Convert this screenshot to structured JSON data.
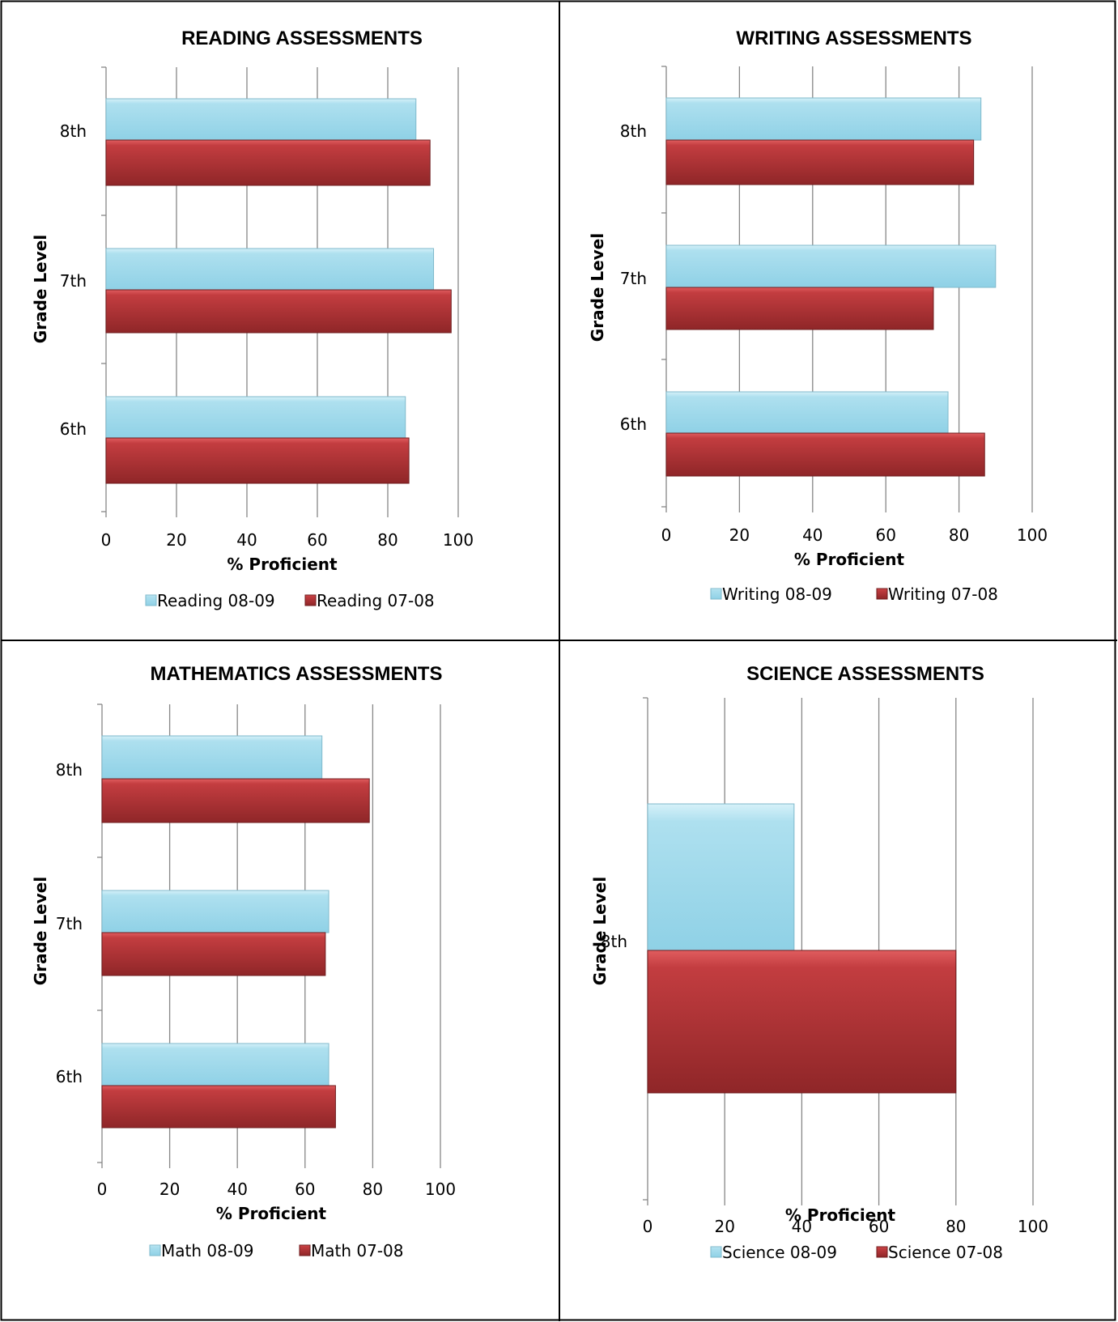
{
  "colors": {
    "series_0809": "#a2dcec",
    "series_0708": "#b33537",
    "grid": "#878787",
    "border": "#000000"
  },
  "chart_data": [
    {
      "type": "bar",
      "orientation": "horizontal",
      "title": "READING ASSESSMENTS",
      "xlabel": "% Proficient",
      "ylabel": "Grade Level",
      "categories": [
        "6th",
        "7th",
        "8th"
      ],
      "xlim": [
        0,
        100
      ],
      "xticks": [
        0,
        20,
        40,
        60,
        80,
        100
      ],
      "grid": true,
      "legend": "bottom",
      "series": [
        {
          "name": "Reading 08-09",
          "values": [
            85,
            93,
            88
          ]
        },
        {
          "name": "Reading 07-08",
          "values": [
            86,
            98,
            92
          ]
        }
      ]
    },
    {
      "type": "bar",
      "orientation": "horizontal",
      "title": "WRITING ASSESSMENTS",
      "xlabel": "% Proficient",
      "ylabel": "Grade Level",
      "categories": [
        "6th",
        "7th",
        "8th"
      ],
      "xlim": [
        0,
        100
      ],
      "xticks": [
        0,
        20,
        40,
        60,
        80,
        100
      ],
      "grid": true,
      "legend": "bottom",
      "series": [
        {
          "name": "Writing 08-09",
          "values": [
            77,
            90,
            86
          ]
        },
        {
          "name": "Writing 07-08",
          "values": [
            87,
            73,
            84
          ]
        }
      ]
    },
    {
      "type": "bar",
      "orientation": "horizontal",
      "title": "MATHEMATICS ASSESSMENTS",
      "xlabel": "% Proficient",
      "ylabel": "Grade Level",
      "categories": [
        "6th",
        "7th",
        "8th"
      ],
      "xlim": [
        0,
        100
      ],
      "xticks": [
        0,
        20,
        40,
        60,
        80,
        100
      ],
      "grid": true,
      "legend": "bottom",
      "series": [
        {
          "name": "Math 08-09",
          "values": [
            67,
            67,
            65
          ]
        },
        {
          "name": "Math 07-08",
          "values": [
            69,
            66,
            79
          ]
        }
      ]
    },
    {
      "type": "bar",
      "orientation": "horizontal",
      "title": "SCIENCE ASSESSMENTS",
      "xlabel": "% Proficient",
      "ylabel": "Grade Level",
      "categories": [
        "8th"
      ],
      "xlim": [
        0,
        100
      ],
      "xticks": [
        0,
        20,
        40,
        60,
        80,
        100
      ],
      "grid": true,
      "legend": "bottom",
      "series": [
        {
          "name": "Science 08-09",
          "values": [
            38
          ]
        },
        {
          "name": "Science 07-08",
          "values": [
            80
          ]
        }
      ]
    }
  ]
}
